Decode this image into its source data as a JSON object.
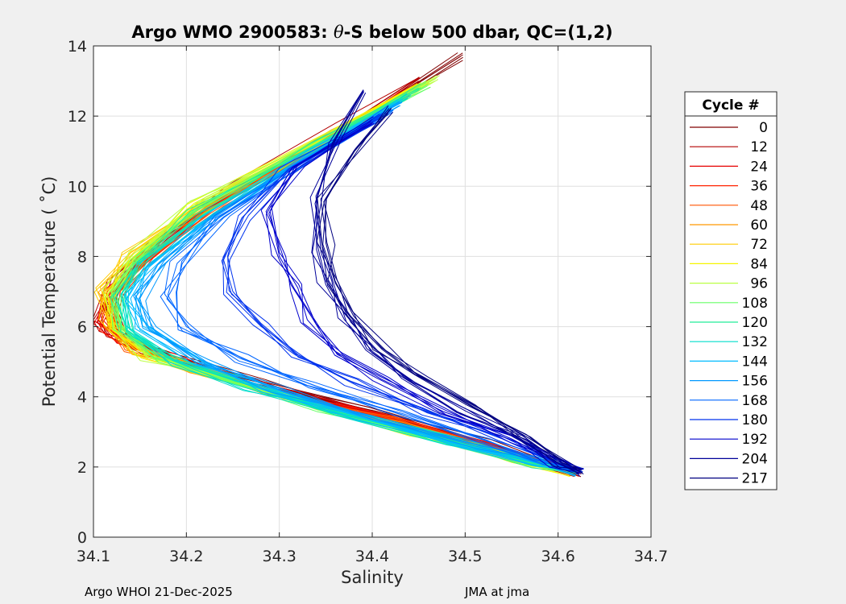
{
  "chart_data": {
    "type": "line",
    "title_prefix": "Argo WMO 2900583: ",
    "title_theta": "θ",
    "title_suffix": "-S below 500 dbar,  QC=(1,2)",
    "xlabel": "Salinity",
    "ylabel": "Potential Temperature ( ˚C)",
    "xlim": [
      34.1,
      34.7
    ],
    "ylim": [
      0,
      14
    ],
    "xticks": [
      34.1,
      34.2,
      34.3,
      34.4,
      34.5,
      34.6,
      34.7
    ],
    "xtick_labels": [
      "34.1",
      "34.2",
      "34.3",
      "34.4",
      "34.5",
      "34.6",
      "34.7"
    ],
    "yticks": [
      0,
      2,
      4,
      6,
      8,
      10,
      12,
      14
    ],
    "ytick_labels": [
      "0",
      "2",
      "4",
      "6",
      "8",
      "10",
      "12",
      "14"
    ],
    "grid": true,
    "legend": {
      "title": "Cycle #",
      "placement": "outside-right",
      "entries": [
        {
          "label": "0",
          "color": "#800000"
        },
        {
          "label": "12",
          "color": "#b30000"
        },
        {
          "label": "24",
          "color": "#e60000"
        },
        {
          "label": "36",
          "color": "#ff2200"
        },
        {
          "label": "48",
          "color": "#ff5500"
        },
        {
          "label": "60",
          "color": "#ff9900"
        },
        {
          "label": "72",
          "color": "#ffcc00"
        },
        {
          "label": "84",
          "color": "#f5f500"
        },
        {
          "label": "96",
          "color": "#bbff44"
        },
        {
          "label": "108",
          "color": "#66ff66"
        },
        {
          "label": "120",
          "color": "#22ee99"
        },
        {
          "label": "132",
          "color": "#00ddcc"
        },
        {
          "label": "144",
          "color": "#00bbff"
        },
        {
          "label": "156",
          "color": "#0099ff"
        },
        {
          "label": "168",
          "color": "#0066ff"
        },
        {
          "label": "180",
          "color": "#0033ee"
        },
        {
          "label": "192",
          "color": "#0000cc"
        },
        {
          "label": "204",
          "color": "#000099"
        },
        {
          "label": "217",
          "color": "#000080"
        }
      ]
    },
    "series": [
      {
        "name": "0",
        "color": "#800000",
        "points": [
          [
            34.495,
            13.7
          ],
          [
            34.38,
            11.8
          ],
          [
            34.26,
            10.0
          ],
          [
            34.18,
            8.6
          ],
          [
            34.14,
            7.6
          ],
          [
            34.12,
            6.6
          ],
          [
            34.13,
            5.8
          ],
          [
            34.18,
            5.2
          ],
          [
            34.28,
            4.4
          ],
          [
            34.4,
            3.6
          ],
          [
            34.52,
            2.7
          ],
          [
            34.625,
            1.8
          ]
        ]
      },
      {
        "name": "12",
        "color": "#b30000",
        "points": [
          [
            34.45,
            13.0
          ],
          [
            34.37,
            11.7
          ],
          [
            34.25,
            9.9
          ],
          [
            34.17,
            8.4
          ],
          [
            34.12,
            7.4
          ],
          [
            34.105,
            6.2
          ],
          [
            34.115,
            5.8
          ],
          [
            34.16,
            5.3
          ],
          [
            34.27,
            4.4
          ],
          [
            34.39,
            3.6
          ],
          [
            34.51,
            2.7
          ],
          [
            34.62,
            1.85
          ]
        ]
      },
      {
        "name": "24",
        "color": "#e60000",
        "points": [
          [
            34.44,
            12.8
          ],
          [
            34.36,
            11.5
          ],
          [
            34.24,
            9.7
          ],
          [
            34.16,
            8.2
          ],
          [
            34.12,
            7.0
          ],
          [
            34.11,
            6.2
          ],
          [
            34.13,
            5.6
          ],
          [
            34.18,
            5.1
          ],
          [
            34.28,
            4.3
          ],
          [
            34.4,
            3.5
          ],
          [
            34.52,
            2.6
          ],
          [
            34.62,
            1.85
          ]
        ]
      },
      {
        "name": "36",
        "color": "#ff2200",
        "points": [
          [
            34.43,
            12.6
          ],
          [
            34.35,
            11.3
          ],
          [
            34.23,
            9.5
          ],
          [
            34.16,
            8.0
          ],
          [
            34.125,
            7.0
          ],
          [
            34.115,
            6.0
          ],
          [
            34.135,
            5.5
          ],
          [
            34.19,
            5.0
          ],
          [
            34.29,
            4.2
          ],
          [
            34.41,
            3.4
          ],
          [
            34.53,
            2.5
          ],
          [
            34.615,
            1.9
          ]
        ]
      },
      {
        "name": "48",
        "color": "#ff5500",
        "points": [
          [
            34.42,
            12.4
          ],
          [
            34.34,
            11.1
          ],
          [
            34.22,
            9.3
          ],
          [
            34.15,
            7.8
          ],
          [
            34.12,
            6.8
          ],
          [
            34.12,
            6.0
          ],
          [
            34.14,
            5.4
          ],
          [
            34.2,
            4.9
          ],
          [
            34.3,
            4.1
          ],
          [
            34.42,
            3.3
          ],
          [
            34.54,
            2.4
          ],
          [
            34.61,
            1.9
          ]
        ]
      },
      {
        "name": "60",
        "color": "#ff9900",
        "points": [
          [
            34.44,
            12.7
          ],
          [
            34.35,
            11.2
          ],
          [
            34.22,
            9.4
          ],
          [
            34.14,
            7.9
          ],
          [
            34.115,
            6.9
          ],
          [
            34.12,
            6.0
          ],
          [
            34.15,
            5.3
          ],
          [
            34.21,
            4.8
          ],
          [
            34.31,
            4.0
          ],
          [
            34.43,
            3.2
          ],
          [
            34.55,
            2.3
          ],
          [
            34.61,
            1.9
          ]
        ]
      },
      {
        "name": "72",
        "color": "#ffcc00",
        "points": [
          [
            34.46,
            13.0
          ],
          [
            34.36,
            11.5
          ],
          [
            34.22,
            9.6
          ],
          [
            34.14,
            8.1
          ],
          [
            34.11,
            7.0
          ],
          [
            34.115,
            6.1
          ],
          [
            34.15,
            5.3
          ],
          [
            34.22,
            4.7
          ],
          [
            34.32,
            3.9
          ],
          [
            34.44,
            3.1
          ],
          [
            34.55,
            2.3
          ],
          [
            34.615,
            1.85
          ]
        ]
      },
      {
        "name": "84",
        "color": "#f5f500",
        "points": [
          [
            34.45,
            12.9
          ],
          [
            34.35,
            11.4
          ],
          [
            34.21,
            9.4
          ],
          [
            34.14,
            7.9
          ],
          [
            34.115,
            6.9
          ],
          [
            34.12,
            6.0
          ],
          [
            34.16,
            5.2
          ],
          [
            34.23,
            4.6
          ],
          [
            34.33,
            3.8
          ],
          [
            34.45,
            3.0
          ],
          [
            34.56,
            2.2
          ],
          [
            34.615,
            1.85
          ]
        ]
      },
      {
        "name": "96",
        "color": "#bbff44",
        "points": [
          [
            34.47,
            13.1
          ],
          [
            34.36,
            11.5
          ],
          [
            34.21,
            9.5
          ],
          [
            34.14,
            8.0
          ],
          [
            34.12,
            7.0
          ],
          [
            34.125,
            6.0
          ],
          [
            34.16,
            5.1
          ],
          [
            34.24,
            4.5
          ],
          [
            34.34,
            3.7
          ],
          [
            34.46,
            2.9
          ],
          [
            34.56,
            2.2
          ],
          [
            34.62,
            1.85
          ]
        ]
      },
      {
        "name": "108",
        "color": "#66ff66",
        "points": [
          [
            34.46,
            12.9
          ],
          [
            34.35,
            11.3
          ],
          [
            34.21,
            9.3
          ],
          [
            34.14,
            7.9
          ],
          [
            34.12,
            6.9
          ],
          [
            34.13,
            6.0
          ],
          [
            34.17,
            5.1
          ],
          [
            34.25,
            4.4
          ],
          [
            34.35,
            3.6
          ],
          [
            34.47,
            2.8
          ],
          [
            34.57,
            2.1
          ],
          [
            34.62,
            1.85
          ]
        ]
      },
      {
        "name": "120",
        "color": "#22ee99",
        "points": [
          [
            34.45,
            12.8
          ],
          [
            34.34,
            11.2
          ],
          [
            34.21,
            9.2
          ],
          [
            34.145,
            7.8
          ],
          [
            34.125,
            6.9
          ],
          [
            34.135,
            5.9
          ],
          [
            34.18,
            5.1
          ],
          [
            34.26,
            4.4
          ],
          [
            34.36,
            3.6
          ],
          [
            34.48,
            2.8
          ],
          [
            34.57,
            2.1
          ],
          [
            34.62,
            1.85
          ]
        ]
      },
      {
        "name": "132",
        "color": "#00ddcc",
        "points": [
          [
            34.44,
            12.6
          ],
          [
            34.34,
            11.0
          ],
          [
            34.22,
            9.2
          ],
          [
            34.15,
            7.8
          ],
          [
            34.13,
            6.9
          ],
          [
            34.14,
            5.9
          ],
          [
            34.19,
            5.0
          ],
          [
            34.27,
            4.3
          ],
          [
            34.37,
            3.5
          ],
          [
            34.49,
            2.7
          ],
          [
            34.58,
            2.1
          ],
          [
            34.62,
            1.85
          ]
        ]
      },
      {
        "name": "144",
        "color": "#00bbff",
        "points": [
          [
            34.43,
            12.4
          ],
          [
            34.33,
            10.8
          ],
          [
            34.22,
            9.0
          ],
          [
            34.16,
            7.7
          ],
          [
            34.14,
            6.8
          ],
          [
            34.15,
            5.9
          ],
          [
            34.21,
            5.0
          ],
          [
            34.29,
            4.2
          ],
          [
            34.39,
            3.4
          ],
          [
            34.5,
            2.6
          ],
          [
            34.58,
            2.1
          ],
          [
            34.62,
            1.85
          ]
        ]
      },
      {
        "name": "156",
        "color": "#0099ff",
        "points": [
          [
            34.43,
            12.3
          ],
          [
            34.32,
            10.7
          ],
          [
            34.23,
            9.1
          ],
          [
            34.17,
            7.8
          ],
          [
            34.15,
            6.8
          ],
          [
            34.16,
            5.9
          ],
          [
            34.22,
            5.0
          ],
          [
            34.3,
            4.2
          ],
          [
            34.4,
            3.4
          ],
          [
            34.51,
            2.6
          ],
          [
            34.59,
            2.1
          ],
          [
            34.62,
            1.85
          ]
        ]
      },
      {
        "name": "168",
        "color": "#0066ff",
        "points": [
          [
            34.42,
            12.2
          ],
          [
            34.32,
            10.6
          ],
          [
            34.24,
            9.1
          ],
          [
            34.19,
            7.8
          ],
          [
            34.18,
            6.9
          ],
          [
            34.2,
            6.0
          ],
          [
            34.26,
            5.1
          ],
          [
            34.34,
            4.3
          ],
          [
            34.43,
            3.5
          ],
          [
            34.52,
            2.7
          ],
          [
            34.59,
            2.1
          ],
          [
            34.62,
            1.85
          ]
        ]
      },
      {
        "name": "180",
        "color": "#0033ee",
        "points": [
          [
            34.41,
            12.0
          ],
          [
            34.31,
            10.5
          ],
          [
            34.26,
            9.1
          ],
          [
            34.24,
            7.9
          ],
          [
            34.25,
            7.0
          ],
          [
            34.28,
            6.1
          ],
          [
            34.32,
            5.2
          ],
          [
            34.38,
            4.4
          ],
          [
            34.46,
            3.6
          ],
          [
            34.54,
            2.8
          ],
          [
            34.6,
            2.1
          ],
          [
            34.625,
            1.85
          ]
        ]
      },
      {
        "name": "192",
        "color": "#0000cc",
        "points": [
          [
            34.4,
            11.9
          ],
          [
            34.32,
            10.6
          ],
          [
            34.29,
            9.3
          ],
          [
            34.3,
            8.0
          ],
          [
            34.32,
            7.1
          ],
          [
            34.33,
            6.2
          ],
          [
            34.36,
            5.3
          ],
          [
            34.41,
            4.5
          ],
          [
            34.48,
            3.6
          ],
          [
            34.55,
            2.8
          ],
          [
            34.6,
            2.1
          ],
          [
            34.625,
            1.85
          ]
        ]
      },
      {
        "name": "204",
        "color": "#000099",
        "points": [
          [
            34.39,
            12.7
          ],
          [
            34.36,
            11.3
          ],
          [
            34.34,
            9.6
          ],
          [
            34.34,
            8.2
          ],
          [
            34.35,
            7.2
          ],
          [
            34.37,
            6.2
          ],
          [
            34.4,
            5.3
          ],
          [
            34.44,
            4.5
          ],
          [
            34.5,
            3.6
          ],
          [
            34.56,
            2.8
          ],
          [
            34.6,
            2.1
          ],
          [
            34.625,
            1.85
          ]
        ]
      },
      {
        "name": "217",
        "color": "#000080",
        "points": [
          [
            34.42,
            12.2
          ],
          [
            34.38,
            11.0
          ],
          [
            34.35,
            9.6
          ],
          [
            34.35,
            8.4
          ],
          [
            34.36,
            7.3
          ],
          [
            34.38,
            6.3
          ],
          [
            34.41,
            5.4
          ],
          [
            34.45,
            4.6
          ],
          [
            34.51,
            3.7
          ],
          [
            34.57,
            2.8
          ],
          [
            34.61,
            2.1
          ],
          [
            34.625,
            1.85
          ]
        ]
      }
    ]
  },
  "footer": {
    "left": "Argo WHOI 21-Dec-2025",
    "right": "JMA at jma"
  }
}
